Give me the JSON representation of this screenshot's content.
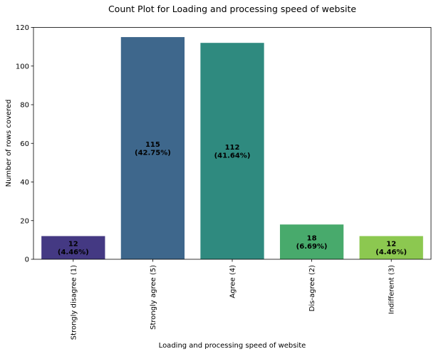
{
  "chart_data": {
    "type": "bar",
    "title": "Count Plot for Loading and processing speed of website",
    "xlabel": "Loading and processing speed of website",
    "ylabel": "Number of rows covered",
    "categories": [
      "Strongly disagree (1)",
      "Strongly agree (5)",
      "Agree (4)",
      "Dis-agree (2)",
      "Indifferent (3)"
    ],
    "values": [
      12,
      115,
      112,
      18,
      12
    ],
    "data_labels": [
      [
        "12",
        "(4.46%)"
      ],
      [
        "115",
        "(42.75%)"
      ],
      [
        "112",
        "(41.64%)"
      ],
      [
        "18",
        "(6.69%)"
      ],
      [
        "12",
        "(4.46%)"
      ]
    ],
    "bar_colors": [
      "#443983",
      "#3e678c",
      "#2f8a7f",
      "#48aa6c",
      "#8cc850"
    ],
    "ylim": [
      0,
      120
    ],
    "yticks": [
      0,
      20,
      40,
      60,
      80,
      100,
      120
    ],
    "grid": false,
    "legend": "none"
  }
}
